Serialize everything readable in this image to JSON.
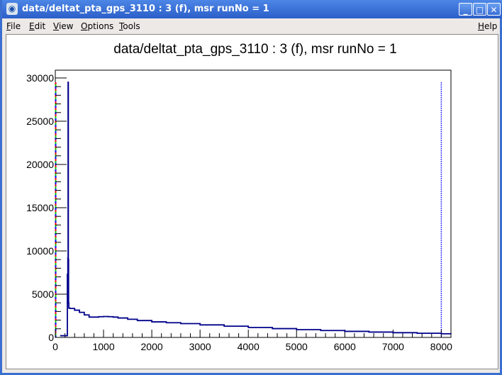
{
  "window": {
    "title": "data/deltat_pta_gps_3110 : 3 (f), msr runNo = 1",
    "minimize": "_",
    "maximize": "□",
    "close": "✕",
    "icon": "root-app-icon"
  },
  "menu": {
    "items": [
      "File",
      "Edit",
      "View",
      "Options",
      "Tools"
    ],
    "help": "Help"
  },
  "chart_data": {
    "type": "line",
    "title": "data/deltat_pta_gps_3110 : 3 (f), msr runNo = 1",
    "xlabel": "",
    "ylabel": "",
    "xlim": [
      0,
      8200
    ],
    "ylim": [
      0,
      30900
    ],
    "xticks": [
      0,
      1000,
      2000,
      3000,
      4000,
      5000,
      6000,
      7000,
      8000
    ],
    "xtick_labels": [
      "0",
      "1000",
      "2000",
      "3000",
      "4000",
      "5000",
      "6000",
      "7000",
      "8000"
    ],
    "yticks": [
      0,
      5000,
      10000,
      15000,
      20000,
      25000,
      30000
    ],
    "ytick_labels": [
      "0",
      "5000",
      "10000",
      "15000",
      "20000",
      "25000",
      "30000"
    ],
    "grid": false,
    "color": "#00008b",
    "x": [
      100,
      240,
      250,
      260,
      265,
      270,
      275,
      280,
      300,
      400,
      500,
      600,
      700,
      800,
      900,
      1000,
      1100,
      1200,
      1300,
      1500,
      1700,
      2000,
      2300,
      2600,
      3000,
      3500,
      4000,
      4500,
      5000,
      5500,
      6000,
      6500,
      7000,
      7500,
      8000,
      8200
    ],
    "y": [
      200,
      200,
      7300,
      9200,
      29500,
      9000,
      4000,
      3400,
      3350,
      3150,
      2900,
      2600,
      2350,
      2350,
      2400,
      2420,
      2400,
      2350,
      2250,
      2100,
      1950,
      1800,
      1700,
      1600,
      1450,
      1300,
      1150,
      1020,
      900,
      800,
      700,
      620,
      550,
      480,
      420,
      400
    ],
    "markers": [
      {
        "x": 0,
        "style": "dashed",
        "colors": [
          "#ff0000",
          "#00cc00",
          "#0000ff"
        ]
      },
      {
        "x": 8000,
        "style": "dotted",
        "colors": [
          "#0000ff"
        ]
      }
    ]
  }
}
